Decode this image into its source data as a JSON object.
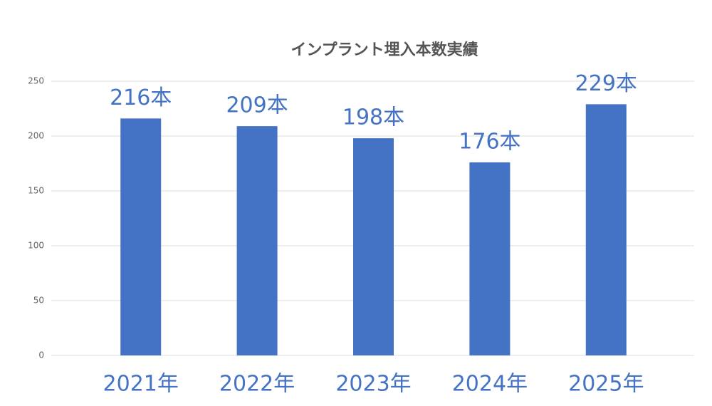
{
  "chart_data": {
    "type": "bar",
    "title": "インプラント埋入本数実績",
    "categories": [
      "2021年",
      "2022年",
      "2023年",
      "2024年",
      "2025年"
    ],
    "values": [
      216,
      209,
      198,
      176,
      229
    ],
    "value_labels": [
      "216本",
      "209本",
      "198本",
      "176本",
      "229本"
    ],
    "color": "#4472c4",
    "ylim": [
      0,
      250
    ],
    "yticks": [
      0,
      50,
      100,
      150,
      200,
      250
    ],
    "grid": true
  }
}
